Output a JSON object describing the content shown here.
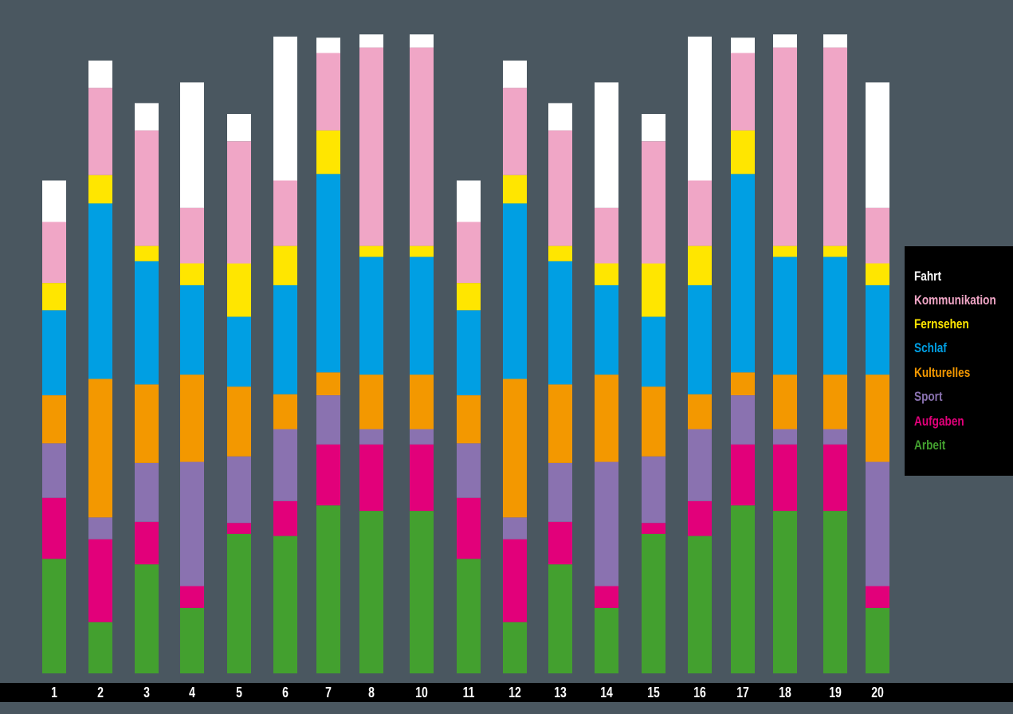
{
  "chart_data": {
    "type": "bar",
    "stacked": true,
    "categories": [
      "1",
      "2",
      "3",
      "4",
      "5",
      "6",
      "7",
      "8",
      "10",
      "11",
      "12",
      "13",
      "14",
      "15",
      "16",
      "17",
      "18",
      "19",
      "20"
    ],
    "series": [
      {
        "name": "Arbeit",
        "color": "#43a02f",
        "values": [
          5.25,
          2.35,
          5.0,
          3.0,
          6.4,
          6.3,
          7.7,
          7.45,
          7.45,
          5.25,
          2.35,
          5.0,
          3.0,
          6.4,
          6.3,
          7.7,
          7.45,
          7.45,
          3.0
        ]
      },
      {
        "name": "Aufgaben",
        "color": "#e2007a",
        "values": [
          2.8,
          3.8,
          1.95,
          1.0,
          0.5,
          1.6,
          2.8,
          3.05,
          3.05,
          2.8,
          3.8,
          1.95,
          1.0,
          0.5,
          1.6,
          2.8,
          3.05,
          3.05,
          1.0
        ]
      },
      {
        "name": "Sport",
        "color": "#8a72b0",
        "values": [
          2.5,
          1.0,
          2.7,
          5.7,
          3.05,
          3.3,
          2.25,
          0.7,
          0.7,
          2.5,
          1.0,
          2.7,
          5.7,
          3.05,
          3.3,
          2.25,
          0.7,
          0.7,
          5.7
        ]
      },
      {
        "name": "Kulturelles",
        "color": "#f39800",
        "values": [
          2.2,
          6.35,
          3.6,
          4.0,
          3.2,
          1.6,
          1.05,
          2.5,
          2.5,
          2.2,
          6.35,
          3.6,
          4.0,
          3.2,
          1.6,
          1.05,
          2.5,
          2.5,
          4.0
        ]
      },
      {
        "name": "Schlaf",
        "color": "#009fe3",
        "values": [
          3.9,
          8.05,
          5.65,
          4.1,
          3.2,
          5.0,
          9.1,
          5.4,
          5.4,
          3.9,
          8.05,
          5.65,
          4.1,
          3.2,
          5.0,
          9.1,
          5.4,
          5.4,
          4.1
        ]
      },
      {
        "name": "Fernsehen",
        "color": "#ffe600",
        "values": [
          1.25,
          1.3,
          0.7,
          1.0,
          2.45,
          1.8,
          2.0,
          0.5,
          0.5,
          1.25,
          1.3,
          0.7,
          1.0,
          2.45,
          1.8,
          2.0,
          0.5,
          0.5,
          1.0
        ]
      },
      {
        "name": "Kommunikation",
        "color": "#f0a6c6",
        "values": [
          2.8,
          4.0,
          5.3,
          2.55,
          5.6,
          3.0,
          3.55,
          9.1,
          9.1,
          2.8,
          4.0,
          5.3,
          2.55,
          5.6,
          3.0,
          3.55,
          9.1,
          9.1,
          2.55
        ]
      },
      {
        "name": "Fahrt",
        "color": "#ffffff",
        "values": [
          1.9,
          1.25,
          1.25,
          5.75,
          1.25,
          6.6,
          0.7,
          0.6,
          0.6,
          1.9,
          1.25,
          1.25,
          5.75,
          1.25,
          6.6,
          0.7,
          0.6,
          0.6,
          5.75
        ]
      }
    ],
    "ylim": [
      0,
      30
    ],
    "grid": false,
    "legend_position": "right"
  },
  "legend": {
    "items": [
      {
        "label": "Fahrt",
        "color": "#ffffff"
      },
      {
        "label": "Kommunikation",
        "color": "#f0a6c6"
      },
      {
        "label": "Fernsehen",
        "color": "#ffe600"
      },
      {
        "label": "Schlaf",
        "color": "#009fe3"
      },
      {
        "label": "Kulturelles",
        "color": "#f39800"
      },
      {
        "label": "Sport",
        "color": "#8a72b0"
      },
      {
        "label": "Aufgaben",
        "color": "#e2007a"
      },
      {
        "label": "Arbeit",
        "color": "#43a02f"
      }
    ]
  }
}
